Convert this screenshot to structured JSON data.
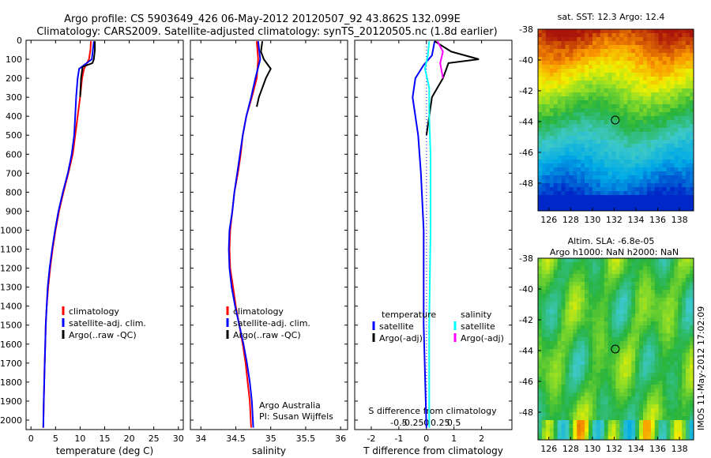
{
  "header": {
    "line1": "Argo profile: CS 5903649_426 06-May-2012 20120507_92 43.862S 132.099E",
    "line2": "Climatology: CARS2009. Satellite-adjusted climatology: synTS_20120505.nc (1.8d earlier)"
  },
  "colors": {
    "climatology": "#ff0000",
    "satellite": "#0000ff",
    "argo": "#000000",
    "salinity_satellite": "#00ffff",
    "salinity_argo": "#ff00ff"
  },
  "timestamp": "IMOS 11-May-2012 17:02:09",
  "chart_data": [
    {
      "type": "line",
      "name": "temperature",
      "xlabel": "temperature (deg C)",
      "xlim": [
        -1,
        31
      ],
      "ylim": [
        2050,
        0
      ],
      "xticks": [
        "0",
        "5",
        "10",
        "15",
        "20",
        "25",
        "30"
      ],
      "xtick_values": [
        0,
        5,
        10,
        15,
        20,
        25,
        30
      ],
      "yticks": [
        "0",
        "100",
        "200",
        "300",
        "400",
        "500",
        "600",
        "700",
        "800",
        "900",
        "1000",
        "1100",
        "1200",
        "1300",
        "1400",
        "1500",
        "1600",
        "1700",
        "1800",
        "1900",
        "2000"
      ],
      "ytick_values": [
        0,
        100,
        200,
        300,
        400,
        500,
        600,
        700,
        800,
        900,
        1000,
        1100,
        1200,
        1300,
        1400,
        1500,
        1600,
        1700,
        1800,
        1900,
        2000
      ],
      "legend": [
        "climatology",
        "satellite-adj. clim.",
        "Argo(..raw -QC)"
      ],
      "series": [
        {
          "name": "climatology",
          "points": [
            [
              12.2,
              5
            ],
            [
              12.1,
              50
            ],
            [
              11.8,
              100
            ],
            [
              10.8,
              150
            ],
            [
              10.4,
              200
            ],
            [
              10.0,
              300
            ],
            [
              9.5,
              400
            ],
            [
              9.0,
              500
            ],
            [
              8.5,
              600
            ],
            [
              7.6,
              700
            ],
            [
              6.6,
              800
            ],
            [
              5.7,
              900
            ],
            [
              5.0,
              1000
            ],
            [
              4.4,
              1100
            ],
            [
              3.9,
              1200
            ],
            [
              3.5,
              1300
            ],
            [
              3.2,
              1400
            ],
            [
              3.0,
              1500
            ],
            [
              2.9,
              1600
            ],
            [
              2.8,
              1700
            ],
            [
              2.7,
              1800
            ],
            [
              2.6,
              1900
            ],
            [
              2.5,
              2040
            ]
          ]
        },
        {
          "name": "satellite-adj. clim.",
          "points": [
            [
              12.8,
              5
            ],
            [
              12.6,
              50
            ],
            [
              12.4,
              100
            ],
            [
              9.8,
              150
            ],
            [
              9.5,
              200
            ],
            [
              9.2,
              300
            ],
            [
              9.0,
              400
            ],
            [
              8.8,
              500
            ],
            [
              8.3,
              600
            ],
            [
              7.5,
              700
            ],
            [
              6.5,
              800
            ],
            [
              5.6,
              900
            ],
            [
              4.9,
              1000
            ],
            [
              4.3,
              1100
            ],
            [
              3.8,
              1200
            ],
            [
              3.4,
              1300
            ],
            [
              3.2,
              1400
            ],
            [
              3.0,
              1500
            ],
            [
              2.9,
              1600
            ],
            [
              2.8,
              1700
            ],
            [
              2.7,
              1800
            ],
            [
              2.6,
              1900
            ],
            [
              2.5,
              2040
            ]
          ]
        },
        {
          "name": "Argo(..raw -QC)",
          "points": [
            [
              13.0,
              5
            ],
            [
              13.0,
              50
            ],
            [
              12.8,
              100
            ],
            [
              12.5,
              120
            ],
            [
              10.5,
              140
            ],
            [
              10.2,
              200
            ],
            [
              10.0,
              300
            ]
          ]
        }
      ]
    },
    {
      "type": "line",
      "name": "salinity",
      "xlabel": "salinity",
      "xlim": [
        33.85,
        36.1
      ],
      "ylim": [
        2050,
        0
      ],
      "xticks": [
        "34",
        "34.5",
        "35",
        "35.5",
        "36"
      ],
      "xtick_values": [
        34,
        34.5,
        35,
        35.5,
        36
      ],
      "legend": [
        "climatology",
        "satellite-adj. clim.",
        "Argo(..raw -QC)"
      ],
      "annotation": [
        "Argo Australia",
        "PI: Susan Wijffels"
      ],
      "series": [
        {
          "name": "climatology",
          "points": [
            [
              34.8,
              5
            ],
            [
              34.82,
              100
            ],
            [
              34.8,
              200
            ],
            [
              34.73,
              300
            ],
            [
              34.65,
              400
            ],
            [
              34.6,
              500
            ],
            [
              34.57,
              600
            ],
            [
              34.53,
              700
            ],
            [
              34.48,
              800
            ],
            [
              34.45,
              900
            ],
            [
              34.42,
              1000
            ],
            [
              34.41,
              1100
            ],
            [
              34.42,
              1200
            ],
            [
              34.46,
              1300
            ],
            [
              34.5,
              1400
            ],
            [
              34.55,
              1500
            ],
            [
              34.6,
              1600
            ],
            [
              34.64,
              1700
            ],
            [
              34.67,
              1800
            ],
            [
              34.7,
              1900
            ],
            [
              34.72,
              2040
            ]
          ]
        },
        {
          "name": "satellite-adj. clim.",
          "points": [
            [
              34.82,
              5
            ],
            [
              34.85,
              100
            ],
            [
              34.78,
              200
            ],
            [
              34.72,
              300
            ],
            [
              34.65,
              400
            ],
            [
              34.6,
              500
            ],
            [
              34.56,
              600
            ],
            [
              34.52,
              700
            ],
            [
              34.48,
              800
            ],
            [
              34.45,
              900
            ],
            [
              34.41,
              1000
            ],
            [
              34.4,
              1100
            ],
            [
              34.41,
              1200
            ],
            [
              34.44,
              1300
            ],
            [
              34.49,
              1400
            ],
            [
              34.55,
              1500
            ],
            [
              34.61,
              1600
            ],
            [
              34.66,
              1700
            ],
            [
              34.7,
              1800
            ],
            [
              34.73,
              1900
            ],
            [
              34.75,
              2040
            ]
          ]
        },
        {
          "name": "Argo(..raw -QC)",
          "points": [
            [
              34.88,
              5
            ],
            [
              34.86,
              60
            ],
            [
              34.9,
              100
            ],
            [
              35.0,
              150
            ],
            [
              34.93,
              200
            ],
            [
              34.83,
              300
            ],
            [
              34.8,
              350
            ]
          ]
        }
      ]
    },
    {
      "type": "line",
      "name": "difference",
      "xlabel": "T difference from climatology",
      "xlabel2": "S difference from climatology",
      "xlim": [
        -2.6,
        3.1
      ],
      "ylim": [
        2050,
        0
      ],
      "xticks": [
        "-2",
        "-1",
        "0",
        "1",
        "2"
      ],
      "xtick_values": [
        -2,
        -1,
        0,
        1,
        2
      ],
      "sticks": [
        "-0.5",
        "-0.25",
        "0",
        "0.25",
        "0.5"
      ],
      "stick_values": [
        -1,
        -0.5,
        0,
        0.5,
        1
      ],
      "legend_headers": [
        "temperature",
        "salinity"
      ],
      "legend": [
        "satellite",
        "Argo(-adj)",
        "satellite",
        "Argo(-adj)"
      ],
      "series": [
        {
          "name": "temperature satellite",
          "points": [
            [
              0.3,
              5
            ],
            [
              0.2,
              80
            ],
            [
              -0.1,
              130
            ],
            [
              -0.4,
              200
            ],
            [
              -0.5,
              300
            ],
            [
              -0.4,
              400
            ],
            [
              -0.3,
              500
            ],
            [
              -0.2,
              700
            ],
            [
              -0.1,
              1000
            ],
            [
              -0.1,
              1500
            ],
            [
              0,
              2040
            ]
          ]
        },
        {
          "name": "temperature Argo(-adj)",
          "points": [
            [
              0.3,
              5
            ],
            [
              0.9,
              60
            ],
            [
              1.9,
              100
            ],
            [
              0.8,
              120
            ],
            [
              0.6,
              200
            ],
            [
              0.4,
              250
            ],
            [
              0.2,
              300
            ],
            [
              0.1,
              400
            ],
            [
              0.0,
              500
            ]
          ]
        },
        {
          "name": "salinity satellite",
          "points": [
            [
              0.1,
              5
            ],
            [
              0.05,
              80
            ],
            [
              -0.05,
              150
            ],
            [
              0.1,
              250
            ],
            [
              0.1,
              400
            ],
            [
              0.15,
              600
            ],
            [
              0.15,
              1000
            ],
            [
              0.1,
              1500
            ],
            [
              0.1,
              2040
            ]
          ]
        },
        {
          "name": "salinity Argo(-adj)",
          "points": [
            [
              0.4,
              5
            ],
            [
              0.6,
              60
            ],
            [
              0.5,
              120
            ],
            [
              0.6,
              200
            ]
          ]
        }
      ]
    }
  ],
  "maps": [
    {
      "title": "sat. SST: 12.3 Argo: 12.4",
      "subtitle": "",
      "yticks": [
        "-38",
        "-40",
        "-42",
        "-44",
        "-46",
        "-48"
      ],
      "ytick_values": [
        -38,
        -40,
        -42,
        -44,
        -46,
        -48
      ],
      "xticks": [
        "126",
        "128",
        "130",
        "132",
        "134",
        "136",
        "138"
      ],
      "xtick_values": [
        126,
        128,
        130,
        132,
        134,
        136,
        138
      ],
      "lon": [
        125,
        139.3
      ],
      "lat": [
        -49.8,
        -38
      ],
      "marker": {
        "lon": 132.1,
        "lat": -43.9
      }
    },
    {
      "title": "Altim. SLA: -6.8e-05",
      "subtitle": "Argo h1000: NaN h2000: NaN",
      "yticks": [
        "-38",
        "-40",
        "-42",
        "-44",
        "-46",
        "-48"
      ],
      "ytick_values": [
        -38,
        -40,
        -42,
        -44,
        -46,
        -48
      ],
      "xticks": [
        "126",
        "128",
        "130",
        "132",
        "134",
        "136",
        "138"
      ],
      "xtick_values": [
        126,
        128,
        130,
        132,
        134,
        136,
        138
      ],
      "lon": [
        125,
        139.3
      ],
      "lat": [
        -49.8,
        -38
      ],
      "marker": {
        "lon": 132.1,
        "lat": -43.9
      }
    }
  ]
}
